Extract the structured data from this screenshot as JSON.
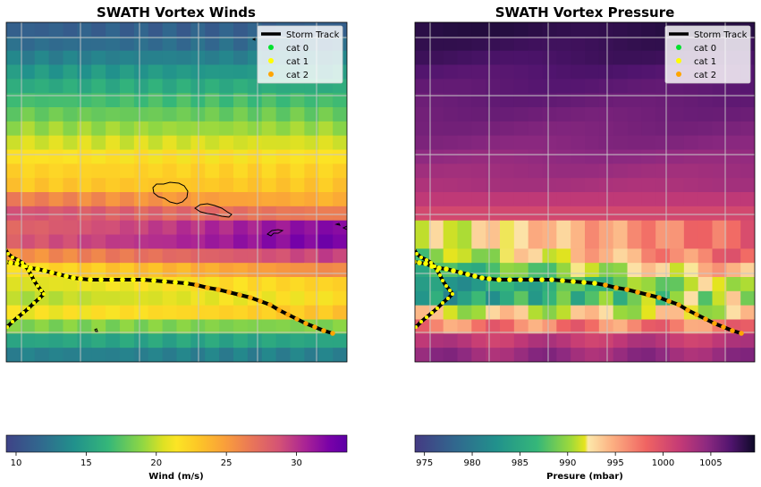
{
  "chart_data": [
    {
      "type": "heatmap",
      "title": "SWATH Vortex Winds",
      "colormap": "plasma_r",
      "colorbar": {
        "label": "Wind (m/s)",
        "ticks": [
          10,
          15,
          20,
          25,
          30
        ],
        "range": [
          9.3,
          33.6
        ]
      },
      "grid": true,
      "legend": {
        "placement": "top-right",
        "entries": [
          {
            "label": "Storm Track",
            "marker": "line",
            "color": "#000000"
          },
          {
            "label": "cat 0",
            "marker": "dot",
            "color": "#00e22d"
          },
          {
            "label": "cat 1",
            "marker": "dot",
            "color": "#ffff00"
          },
          {
            "label": "cat 2",
            "marker": "dot",
            "color": "#ffa500"
          }
        ]
      },
      "values": [
        [
          11.2
        ],
        [
          12.0
        ],
        [
          13.2
        ],
        [
          14.6
        ],
        [
          15.8
        ],
        [
          17.0
        ],
        [
          18.0
        ],
        [
          19.2
        ],
        [
          20.4
        ],
        [
          21.6
        ],
        [
          22.4
        ],
        [
          23.0
        ],
        [
          25.2
        ],
        [
          27.6
        ],
        [
          29.2
        ],
        [
          29.8
        ],
        [
          26.8
        ],
        [
          23.2
        ],
        [
          21.2
        ],
        [
          20.4
        ],
        [
          21.8
        ],
        [
          18.6
        ],
        [
          15.4
        ],
        [
          13.2
        ]
      ]
    },
    {
      "type": "heatmap",
      "title": "SWATH Vortex Pressure",
      "colormap": "magma",
      "colorbar": {
        "label": "Presure (mbar)",
        "ticks": [
          975,
          980,
          985,
          990,
          995,
          1000,
          1005
        ],
        "range": [
          974.0,
          1009.6
        ]
      },
      "grid": true,
      "legend": {
        "placement": "top-right",
        "entries": [
          {
            "label": "Storm Track",
            "marker": "line",
            "color": "#000000"
          },
          {
            "label": "cat 0",
            "marker": "dot",
            "color": "#00e22d"
          },
          {
            "label": "cat 1",
            "marker": "dot",
            "color": "#ffff00"
          },
          {
            "label": "cat 2",
            "marker": "dot",
            "color": "#ffa500"
          }
        ]
      }
    }
  ]
}
